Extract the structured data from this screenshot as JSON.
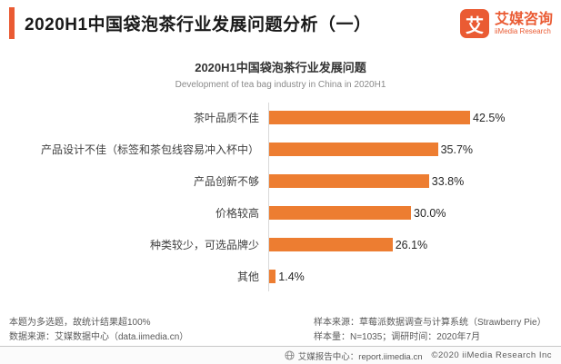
{
  "header": {
    "title": "2020H1中国袋泡茶行业发展问题分析（一）",
    "logo": {
      "glyph": "艾",
      "name_cn": "艾媒咨询",
      "name_en": "iiMedia Research"
    }
  },
  "chart_data": {
    "type": "bar",
    "orientation": "horizontal",
    "title": "2020H1中国袋泡茶行业发展问题",
    "subtitle": "Development of tea bag industry in China in 2020H1",
    "categories": [
      "茶叶品质不佳",
      "产品设计不佳（标签和茶包线容易冲入杯中）",
      "产品创新不够",
      "价格较高",
      "种类较少，可选品牌少",
      "其他"
    ],
    "values": [
      42.5,
      35.7,
      33.8,
      30.0,
      26.1,
      1.4
    ],
    "value_labels": [
      "42.5%",
      "35.7%",
      "33.8%",
      "30.0%",
      "26.1%",
      "1.4%"
    ],
    "xlabel": "",
    "ylabel": "",
    "xlim": [
      0,
      45
    ],
    "bar_color": "#ED7D31",
    "grid": false,
    "legend": false
  },
  "notes": {
    "left_line1": "本题为多选题，故统计结果超100%",
    "left_line2": "数据来源：艾媒数据中心（data.iimedia.cn）",
    "right_line1": "样本来源：草莓派数据调查与计算系统（Strawberry Pie）",
    "right_line2": "样本量：N=1035；调研时间：2020年7月"
  },
  "footer": {
    "report_center": "艾媒报告中心：report.iimedia.cn",
    "copyright": "©2020  iiMedia Research  Inc"
  },
  "colors": {
    "brand_orange": "#EA5B33",
    "bar_orange": "#ED7D31",
    "axis_gray": "#D9D9D9"
  }
}
